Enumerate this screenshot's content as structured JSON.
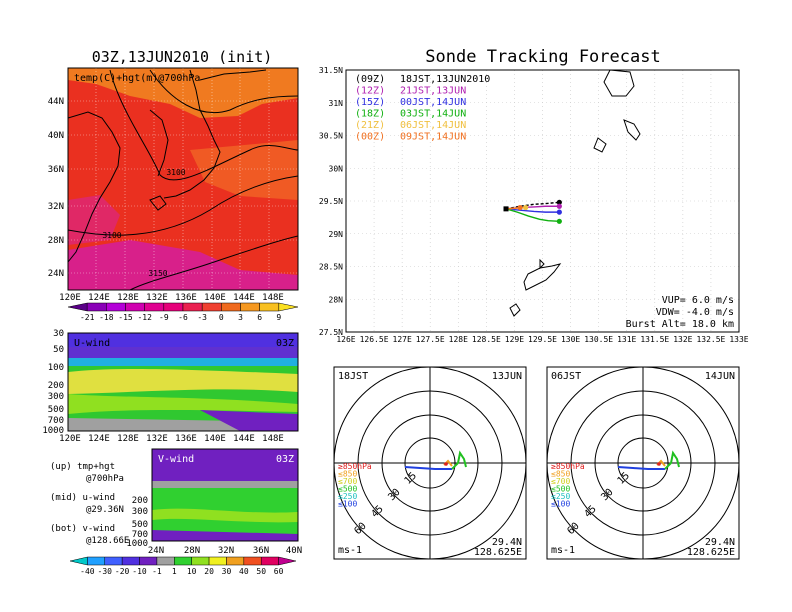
{
  "main_title": "Sonde Tracking Forecast",
  "left_title": "03Z,13JUN2010 (init)",
  "map700": {
    "label": "temp(C)+hgt(m)@700hPa",
    "lat_ticks": [
      "44N",
      "40N",
      "36N",
      "32N",
      "28N",
      "24N"
    ],
    "lon_ticks": [
      "120E",
      "124E",
      "128E",
      "132E",
      "136E",
      "140E",
      "144E",
      "148E"
    ],
    "contour_labels": [
      "3100",
      "3100",
      "3150"
    ],
    "colorbar_labels": [
      "-21",
      "-18",
      "-15",
      "-12",
      "-9",
      "-6",
      "-3",
      "0",
      "3",
      "6",
      "9"
    ],
    "colorbar_colors": [
      "#5a0088",
      "#8a00b8",
      "#b400d8",
      "#d000b0",
      "#e00090",
      "#e6007a",
      "#ea2050",
      "#f04030",
      "#f06a1e",
      "#f59820",
      "#f8c020",
      "#fae020"
    ]
  },
  "uwind": {
    "label": "U-wind",
    "time": "03Z",
    "p_ticks": [
      "30",
      "50",
      "100",
      "200",
      "300",
      "500",
      "700",
      "1000"
    ],
    "lon_ticks": [
      "120E",
      "124E",
      "128E",
      "132E",
      "136E",
      "140E",
      "144E",
      "148E"
    ]
  },
  "vwind": {
    "label": "V-wind",
    "time": "03Z",
    "p_ticks": [
      "200",
      "300",
      "500",
      "700",
      "1000"
    ],
    "lat_ticks": [
      "24N",
      "28N",
      "32N",
      "36N",
      "40N"
    ]
  },
  "notes": [
    {
      "k": "up",
      "a": "(up) tmp+hgt",
      "b": "@700hPa"
    },
    {
      "k": "mid",
      "a": "(mid) u-wind",
      "b": "@29.36N"
    },
    {
      "k": "bot",
      "a": "(bot) v-wind",
      "b": "@128.66E"
    }
  ],
  "wind_colorbar": {
    "labels": [
      "-40",
      "-30",
      "-20",
      "-10",
      "-1",
      "1",
      "10",
      "20",
      "30",
      "40",
      "50",
      "60"
    ],
    "colors": [
      "#00c8c8",
      "#20a0ff",
      "#4060ff",
      "#5030e0",
      "#7020c0",
      "#a0a0a0",
      "#30d030",
      "#90e020",
      "#f0f020",
      "#f0a020",
      "#f05020",
      "#e00060",
      "#c00090"
    ]
  },
  "track_map": {
    "lat_ticks": [
      "31.5N",
      "31N",
      "30.5N",
      "30N",
      "29.5N",
      "29N",
      "28.5N",
      "28N",
      "27.5N"
    ],
    "lon_ticks": [
      "126E",
      "126.5E",
      "127E",
      "127.5E",
      "128E",
      "128.5E",
      "129E",
      "129.5E",
      "130E",
      "130.5E",
      "131E",
      "131.5E",
      "132E",
      "132.5E",
      "133E"
    ],
    "legend": [
      {
        "code": "(09Z)",
        "time": "18JST,13JUN2010",
        "color": "#000000"
      },
      {
        "code": "(12Z)",
        "time": "21JST,13JUN",
        "color": "#b020b0"
      },
      {
        "code": "(15Z)",
        "time": "00JST,14JUN",
        "color": "#3030e0"
      },
      {
        "code": "(18Z)",
        "time": "03JST,14JUN",
        "color": "#10b010"
      },
      {
        "code": "(21Z)",
        "time": "06JST,14JUN",
        "color": "#f0c040"
      },
      {
        "code": "(00Z)",
        "time": "09JST,14JUN",
        "color": "#f07020"
      }
    ],
    "params": [
      "VUP= 6.0 m/s",
      "VDW= -4.0 m/s",
      "Burst Alt= 18.0 km"
    ]
  },
  "hodo_left": {
    "time": "18JST",
    "date": "13JUN",
    "ring_labels": [
      "15",
      "30",
      "45",
      "60"
    ],
    "unit": "ms-1",
    "lat": "29.4N",
    "lon": "128.625E",
    "levels": [
      {
        "t": "≥850hPa",
        "c": "#e02020"
      },
      {
        "t": "≤850",
        "c": "#f0a020"
      },
      {
        "t": "≤700",
        "c": "#d0d020"
      },
      {
        "t": "≤500",
        "c": "#20c020"
      },
      {
        "t": "≤250",
        "c": "#20c0c0"
      },
      {
        "t": "≤100",
        "c": "#2040e0"
      }
    ]
  },
  "hodo_right": {
    "time": "06JST",
    "date": "14JUN",
    "ring_labels": [
      "15",
      "30",
      "45",
      "60"
    ],
    "unit": "ms-1",
    "lat": "29.4N",
    "lon": "128.625E",
    "levels": [
      {
        "t": "≥850hPa",
        "c": "#e02020"
      },
      {
        "t": "≤850",
        "c": "#f0a020"
      },
      {
        "t": "≤700",
        "c": "#d0d020"
      },
      {
        "t": "≤500",
        "c": "#20c020"
      },
      {
        "t": "≤250",
        "c": "#20c0c0"
      },
      {
        "t": "≤100",
        "c": "#2040e0"
      }
    ]
  },
  "colors": {
    "map_base": "#ea3020",
    "map_warm": "#f07a20",
    "map_cool": "#d8208a",
    "uwind_bg": "#30c830",
    "uwind_top": "#5030e0",
    "vwind_bg": "#30d030",
    "vwind_top": "#7020c0"
  },
  "chart_data": [
    {
      "type": "line",
      "title": "Sonde Tracking Forecast",
      "xlim": [
        126,
        133
      ],
      "ylim": [
        27.5,
        31.5
      ],
      "grid": true,
      "series": [
        {
          "name": "(09Z) 18JST,13JUN2010",
          "x": [
            128.85,
            129.1,
            129.35,
            129.55,
            129.8
          ],
          "y": [
            29.38,
            29.42,
            29.45,
            29.46,
            29.48
          ]
        },
        {
          "name": "(12Z) 21JST,13JUN",
          "x": [
            128.85,
            129.1,
            129.35,
            129.55,
            129.8
          ],
          "y": [
            29.38,
            29.4,
            29.41,
            29.42,
            29.42
          ]
        },
        {
          "name": "(15Z) 00JST,14JUN",
          "x": [
            128.85,
            129.1,
            129.35,
            129.55,
            129.8
          ],
          "y": [
            29.38,
            29.36,
            29.34,
            29.33,
            29.33
          ]
        },
        {
          "name": "(18Z) 03JST,14JUN",
          "x": [
            128.85,
            129.05,
            129.25,
            129.45,
            129.6,
            129.8
          ],
          "y": [
            29.38,
            29.33,
            29.27,
            29.22,
            29.2,
            29.19
          ]
        },
        {
          "name": "(21Z) 06JST,14JUN",
          "x": [
            128.85,
            129.05,
            129.2
          ],
          "y": [
            29.38,
            29.39,
            29.4
          ]
        },
        {
          "name": "(00Z) 09JST,14JUN",
          "x": [
            128.85,
            129.0,
            129.1
          ],
          "y": [
            29.38,
            29.39,
            29.4
          ]
        }
      ]
    }
  ]
}
